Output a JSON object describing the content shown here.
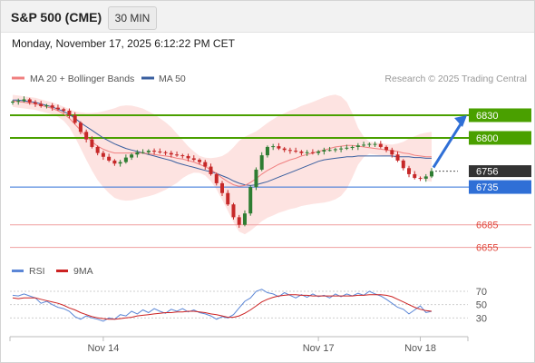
{
  "header": {
    "symbol": "S&P 500 (CME)",
    "timeframe": "30 MIN",
    "timestamp": "Monday, November 17, 2025 6:12:22 PM CET"
  },
  "legend": {
    "ma20_label": "MA 20 + Bollinger Bands",
    "ma20_color": "#f08080",
    "ma50_label": "MA 50",
    "ma50_color": "#3a5f9f",
    "credit": "Research © 2025 Trading Central"
  },
  "colors": {
    "up_candle": "#2e7d32",
    "down_candle": "#c62828",
    "band_fill": "#fde3e1",
    "resistance": "#4aa000",
    "pivot": "#2f6fd6",
    "support": "#f0a0a0",
    "current": "#333333",
    "arrow": "#2f6fd6",
    "rsi": "#5b86d6",
    "rsi_ma": "#cc2222"
  },
  "levels": {
    "r2": "6830",
    "r1": "6800",
    "current": "6756",
    "pivot": "6735",
    "s1": "6685",
    "s2": "6655"
  },
  "x_axis": {
    "labels": [
      "Nov 14",
      "Nov 17",
      "Nov 18"
    ]
  },
  "rsi_panel": {
    "rsi_label": "RSI",
    "ma_label": "9MA",
    "ticks": [
      "70",
      "50",
      "30"
    ]
  },
  "chart_data": [
    {
      "type": "line",
      "subtype": "candlestick",
      "x_labels": [
        "Nov 14",
        "Nov 17",
        "Nov 18"
      ],
      "series": [
        {
          "name": "Price (close, approx.)",
          "values": [
            6848,
            6849,
            6851,
            6847,
            6845,
            6842,
            6843,
            6840,
            6838,
            6836,
            6830,
            6820,
            6808,
            6798,
            6788,
            6780,
            6775,
            6770,
            6766,
            6768,
            6774,
            6778,
            6781,
            6781,
            6783,
            6782,
            6781,
            6780,
            6778,
            6777,
            6776,
            6773,
            6771,
            6768,
            6762,
            6752,
            6740,
            6727,
            6712,
            6695,
            6685,
            6700,
            6735,
            6758,
            6777,
            6788,
            6789,
            6786,
            6784,
            6783,
            6782,
            6780,
            6781,
            6780,
            6782,
            6784,
            6784,
            6785,
            6786,
            6787,
            6788,
            6790,
            6791,
            6792,
            6792,
            6788,
            6784,
            6778,
            6770,
            6760,
            6752,
            6747,
            6746,
            6749,
            6756
          ]
        },
        {
          "name": "MA 20",
          "values": [
            6849,
            6848,
            6847,
            6846,
            6845,
            6843,
            6841,
            6839,
            6836,
            6832,
            6826,
            6818,
            6810,
            6802,
            6795,
            6789,
            6785,
            6782,
            6780,
            6780,
            6780,
            6780,
            6780,
            6780,
            6779,
            6778,
            6777,
            6776,
            6775,
            6773,
            6772,
            6770,
            6768,
            6765,
            6762,
            6758,
            6753,
            6747,
            6742,
            6738,
            6736,
            6737,
            6741,
            6746,
            6752,
            6757,
            6761,
            6765,
            6768,
            6771,
            6773,
            6776,
            6778,
            6780,
            6782,
            6784,
            6786,
            6788,
            6789,
            6790,
            6790,
            6789,
            6788,
            6787,
            6786,
            6785,
            6784,
            6783,
            6782,
            6780,
            6779,
            6777,
            6776,
            6775,
            6775
          ]
        },
        {
          "name": "MA 50",
          "values": [
            6850,
            6850,
            6849,
            6848,
            6847,
            6845,
            6843,
            6841,
            6838,
            6835,
            6831,
            6826,
            6820,
            6815,
            6810,
            6805,
            6800,
            6796,
            6792,
            6789,
            6786,
            6784,
            6782,
            6780,
            6778,
            6776,
            6774,
            6772,
            6770,
            6767,
            6765,
            6763,
            6761,
            6759,
            6757,
            6755,
            6753,
            6750,
            6747,
            6743,
            6740,
            6738,
            6737,
            6738,
            6740,
            6742,
            6745,
            6748,
            6751,
            6754,
            6757,
            6760,
            6763,
            6766,
            6769,
            6771,
            6772,
            6773,
            6774,
            6775,
            6775,
            6776,
            6776,
            6776,
            6776,
            6776,
            6776,
            6776,
            6775,
            6775,
            6775,
            6774,
            6774,
            6773,
            6773
          ]
        }
      ],
      "levels": {
        "6830": "resistance",
        "6800": "resistance",
        "6756": "current",
        "6735": "pivot",
        "6685": "support",
        "6655": "support"
      },
      "ylim": [
        6645,
        6860
      ],
      "legend": "top-left"
    },
    {
      "type": "line",
      "x_labels": [
        "Nov 14",
        "Nov 17",
        "Nov 18"
      ],
      "series": [
        {
          "name": "RSI",
          "values": [
            64,
            63,
            66,
            63,
            60,
            52,
            55,
            50,
            46,
            44,
            40,
            32,
            28,
            33,
            30,
            28,
            25,
            30,
            28,
            35,
            33,
            40,
            36,
            42,
            38,
            44,
            40,
            37,
            43,
            40,
            44,
            39,
            42,
            38,
            36,
            33,
            28,
            32,
            30,
            35,
            45,
            55,
            60,
            70,
            73,
            68,
            66,
            62,
            68,
            64,
            60,
            65,
            61,
            66,
            62,
            64,
            60,
            66,
            62,
            66,
            63,
            67,
            64,
            70,
            66,
            63,
            58,
            52,
            46,
            43,
            36,
            42,
            48,
            38,
            40
          ]
        },
        {
          "name": "9MA",
          "values": [
            60,
            59,
            60,
            60,
            60,
            58,
            56,
            54,
            52,
            49,
            45,
            42,
            38,
            35,
            32,
            30,
            29,
            28,
            28,
            29,
            30,
            31,
            33,
            34,
            35,
            36,
            37,
            38,
            38,
            39,
            39,
            40,
            40,
            39,
            38,
            36,
            35,
            33,
            31,
            31,
            33,
            37,
            42,
            48,
            54,
            58,
            61,
            63,
            64,
            65,
            65,
            64,
            64,
            63,
            63,
            63,
            63,
            63,
            63,
            63,
            63,
            64,
            64,
            65,
            65,
            65,
            64,
            62,
            58,
            54,
            50,
            46,
            43,
            41,
            40
          ]
        }
      ],
      "ylim": [
        10,
        85
      ],
      "y_ticks": [
        70,
        50,
        30
      ],
      "legend": "top-left"
    }
  ]
}
